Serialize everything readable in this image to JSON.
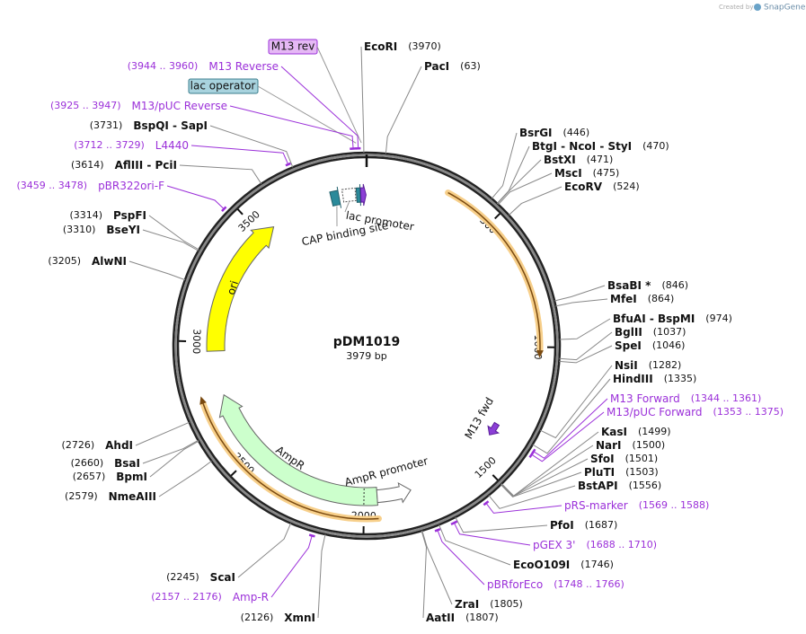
{
  "credit": {
    "prefix": "Created by",
    "brand": "SnapGene"
  },
  "map": {
    "name": "pDM1019",
    "length": "3979 bp",
    "ticks": [
      500,
      1000,
      1500,
      2000,
      2500,
      3000,
      3500
    ]
  },
  "enzymes": [
    {
      "name": "EcoRI",
      "site": "(3970)"
    },
    {
      "name": "PacI",
      "site": "(63)"
    },
    {
      "name": "BsrGI",
      "site": "(446)"
    },
    {
      "name": "BtgI - NcoI - StyI",
      "site": "(470)"
    },
    {
      "name": "BstXI",
      "site": "(471)"
    },
    {
      "name": "MscI",
      "site": "(475)"
    },
    {
      "name": "EcoRV",
      "site": "(524)"
    },
    {
      "name": "BsaBI *",
      "site": "(846)"
    },
    {
      "name": "MfeI",
      "site": "(864)"
    },
    {
      "name": "BfuAI - BspMI",
      "site": "(974)"
    },
    {
      "name": "BglII",
      "site": "(1037)"
    },
    {
      "name": "SpeI",
      "site": "(1046)"
    },
    {
      "name": "NsiI",
      "site": "(1282)"
    },
    {
      "name": "HindIII",
      "site": "(1335)"
    },
    {
      "name": "KasI",
      "site": "(1499)"
    },
    {
      "name": "NarI",
      "site": "(1500)"
    },
    {
      "name": "SfoI",
      "site": "(1501)"
    },
    {
      "name": "PluTI",
      "site": "(1503)"
    },
    {
      "name": "BstAPI",
      "site": "(1556)"
    },
    {
      "name": "PfoI",
      "site": "(1687)"
    },
    {
      "name": "EcoO109I",
      "site": "(1746)"
    },
    {
      "name": "ZraI",
      "site": "(1805)"
    },
    {
      "name": "AatII",
      "site": "(1807)"
    },
    {
      "name": "XmnI",
      "site": "(2126)"
    },
    {
      "name": "ScaI",
      "site": "(2245)"
    },
    {
      "name": "NmeAIII",
      "site": "(2579)"
    },
    {
      "name": "BpmI",
      "site": "(2657)"
    },
    {
      "name": "BsaI",
      "site": "(2660)"
    },
    {
      "name": "AhdI",
      "site": "(2726)"
    },
    {
      "name": "AlwNI",
      "site": "(3205)"
    },
    {
      "name": "BseYI",
      "site": "(3310)"
    },
    {
      "name": "PspFI",
      "site": "(3314)"
    },
    {
      "name": "AflIII - PciI",
      "site": "(3614)"
    },
    {
      "name": "BspQI - SapI",
      "site": "(3731)"
    }
  ],
  "primers": [
    {
      "name": "M13 Forward",
      "site": "(1344 .. 1361)"
    },
    {
      "name": "M13/pUC Forward",
      "site": "(1353 .. 1375)"
    },
    {
      "name": "pRS-marker",
      "site": "(1569 .. 1588)"
    },
    {
      "name": "pGEX 3'",
      "site": "(1688 .. 1710)"
    },
    {
      "name": "pBRforEco",
      "site": "(1748 .. 1766)"
    },
    {
      "name": "Amp-R",
      "site": "(2157 .. 2176)"
    },
    {
      "name": "pBR322ori-F",
      "site": "(3459 .. 3478)"
    },
    {
      "name": "L4440",
      "site": "(3712 .. 3729)"
    },
    {
      "name": "M13/pUC Reverse",
      "site": "(3925 .. 3947)"
    },
    {
      "name": "M13 Reverse",
      "site": "(3944 .. 3960)"
    }
  ],
  "features": [
    {
      "name": "M13 rev"
    },
    {
      "name": "lac operator"
    },
    {
      "name": "lac promoter"
    },
    {
      "name": "CAP binding site"
    },
    {
      "name": "ori"
    },
    {
      "name": "AmpR"
    },
    {
      "name": "AmpR promoter"
    },
    {
      "name": "M13 fwd"
    }
  ]
}
